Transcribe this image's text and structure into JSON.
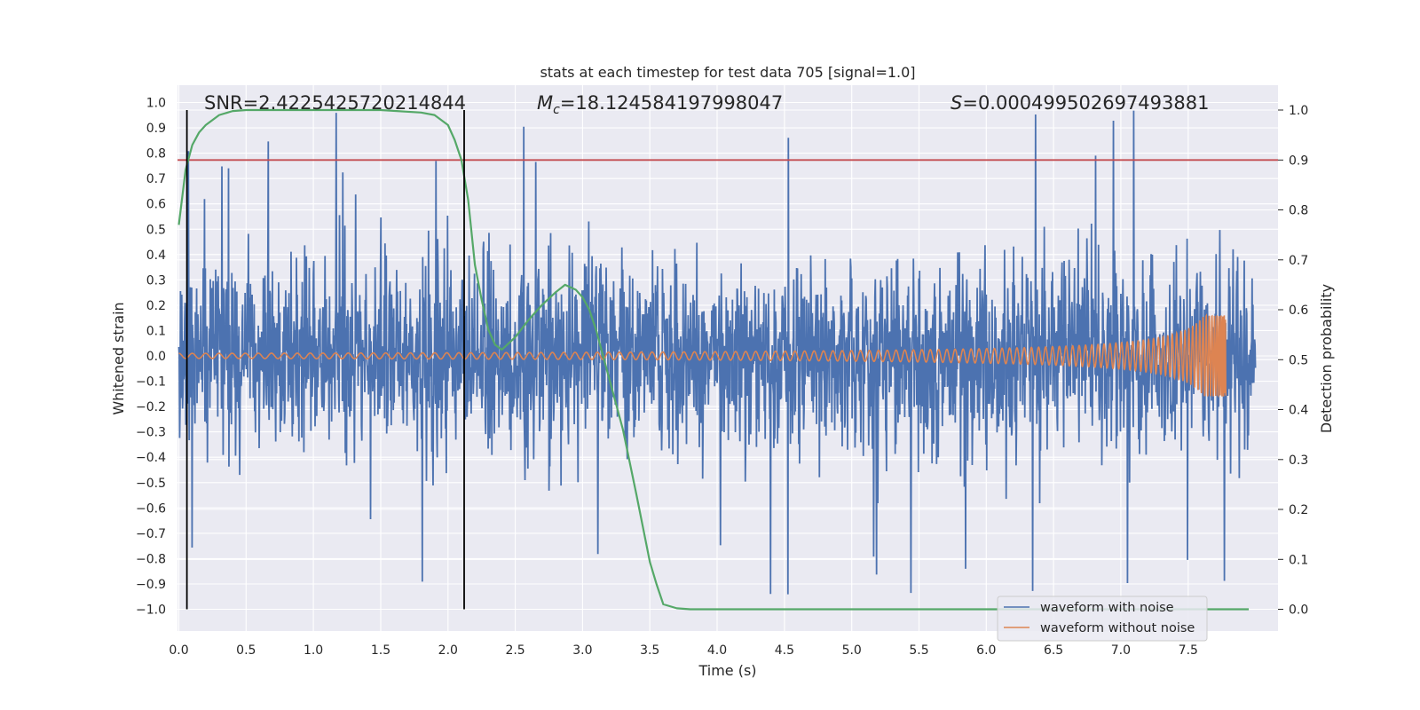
{
  "chart_data": {
    "type": "line",
    "title": "stats at each timestep for test data 705 [signal=1.0]",
    "xlabel": "Time (s)",
    "ylabel_left": "Whitened strain",
    "ylabel_right": "Detection probability",
    "xlim": [
      0.0,
      8.0
    ],
    "ylim_left": [
      -1.09,
      1.04
    ],
    "ylim_right": [
      -0.047,
      1.048
    ],
    "x_ticks": [
      "0.0",
      "0.5",
      "1.0",
      "1.5",
      "2.0",
      "2.5",
      "3.0",
      "3.5",
      "4.0",
      "4.5",
      "5.0",
      "5.5",
      "6.0",
      "6.5",
      "7.0",
      "7.5"
    ],
    "y_ticks_left": [
      "1.0",
      "0.9",
      "0.8",
      "0.7",
      "0.6",
      "0.5",
      "0.4",
      "0.3",
      "0.2",
      "0.1",
      "0.0",
      "−0.1",
      "−0.2",
      "−0.3",
      "−0.4",
      "−0.5",
      "−0.6",
      "−0.7",
      "−0.8",
      "−0.9",
      "−1.0"
    ],
    "y_ticks_right": [
      "1.0",
      "0.9",
      "0.8",
      "0.7",
      "0.6",
      "0.5",
      "0.4",
      "0.3",
      "0.2",
      "0.1",
      "0.0"
    ],
    "annotations": {
      "snr": "SNR=2.4225425720214844",
      "mc_symbol": "M",
      "mc_sub": "c",
      "mc_value": "=18.124584197998047",
      "s_symbol": "S",
      "s_value": "=0.000499502697493881"
    },
    "threshold": {
      "value": 0.9,
      "axis": "right",
      "color": "#c44e52"
    },
    "vertical_markers": [
      0.06,
      2.12
    ],
    "series": [
      {
        "name": "waveform with noise",
        "color": "#4c72b0",
        "axis": "left",
        "style": "noise",
        "x_range": [
          0.0,
          8.0
        ],
        "typical_amplitude": 0.4,
        "peak_min": -0.97,
        "peak_max": 0.97
      },
      {
        "name": "waveform without noise",
        "color": "#dd8452",
        "axis": "left",
        "style": "chirp",
        "x_range": [
          0.0,
          7.78
        ],
        "start_amplitude": 0.01,
        "end_amplitude": 0.16
      },
      {
        "name": "detection probability",
        "color": "#55a868",
        "axis": "right",
        "x": [
          0.0,
          0.05,
          0.1,
          0.15,
          0.2,
          0.3,
          0.4,
          0.5,
          0.8,
          1.0,
          1.5,
          1.8,
          1.9,
          2.0,
          2.05,
          2.1,
          2.15,
          2.2,
          2.25,
          2.3,
          2.35,
          2.4,
          2.5,
          2.6,
          2.7,
          2.8,
          2.87,
          2.95,
          3.0,
          3.05,
          3.1,
          3.15,
          3.2,
          3.3,
          3.4,
          3.5,
          3.55,
          3.6,
          3.7,
          3.8,
          4.0,
          5.0,
          6.0,
          7.0,
          7.95
        ],
        "y": [
          0.77,
          0.88,
          0.93,
          0.955,
          0.97,
          0.99,
          0.998,
          1.0,
          1.0,
          1.0,
          1.0,
          0.995,
          0.99,
          0.97,
          0.94,
          0.9,
          0.82,
          0.69,
          0.62,
          0.56,
          0.53,
          0.52,
          0.545,
          0.58,
          0.61,
          0.635,
          0.65,
          0.64,
          0.625,
          0.6,
          0.56,
          0.51,
          0.46,
          0.36,
          0.23,
          0.095,
          0.05,
          0.01,
          0.002,
          0.0,
          0.0,
          0.0,
          0.0,
          0.0,
          0.0
        ]
      }
    ],
    "legend": {
      "position": "lower-right",
      "entries": [
        "waveform with noise",
        "waveform without noise"
      ]
    },
    "grid": true,
    "style": {
      "background": "#eaeaf2",
      "grid_color": "#ffffff"
    }
  }
}
